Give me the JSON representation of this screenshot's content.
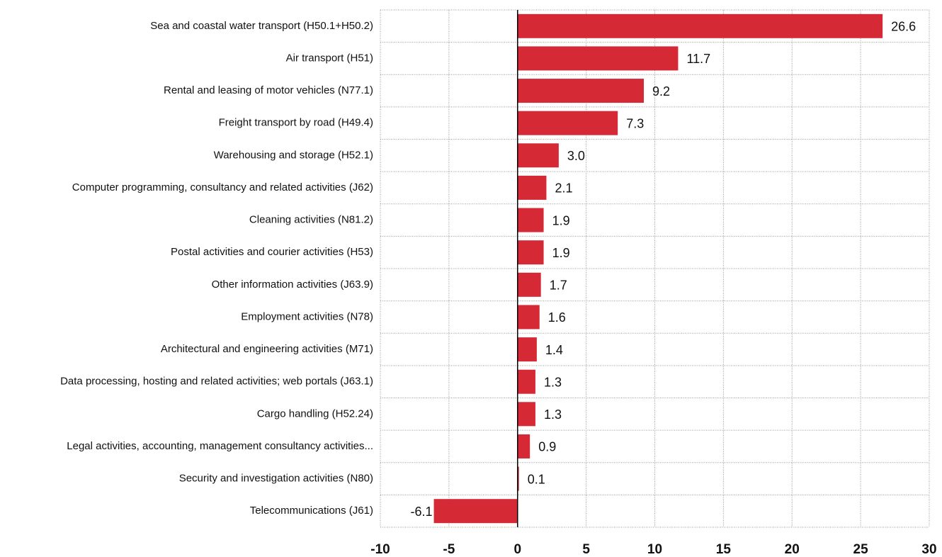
{
  "chart_data": {
    "type": "bar",
    "orientation": "horizontal",
    "categories": [
      "Sea and coastal water transport (H50.1+H50.2)",
      "Air transport (H51)",
      "Rental and leasing of motor vehicles (N77.1)",
      "Freight transport by road (H49.4)",
      "Warehousing and storage (H52.1)",
      "Computer programming, consultancy and related activities (J62)",
      "Cleaning activities (N81.2)",
      "Postal activities and courier activities (H53)",
      "Other information activities (J63.9)",
      "Employment activities (N78)",
      "Architectural and engineering activities (M71)",
      "Data processing, hosting and related activities; web portals (J63.1)",
      "Cargo handling (H52.24)",
      "Legal activities, accounting, management consultancy activities...",
      "Security and investigation activities (N80)",
      "Telecommunications (J61)"
    ],
    "values": [
      26.6,
      11.7,
      9.2,
      7.3,
      3.0,
      2.1,
      1.9,
      1.9,
      1.7,
      1.6,
      1.4,
      1.3,
      1.3,
      0.9,
      0.1,
      -6.1
    ],
    "value_labels": [
      "26.6",
      "11.7",
      "9.2",
      "7.3",
      "3.0",
      "2.1",
      "1.9",
      "1.9",
      "1.7",
      "1.6",
      "1.4",
      "1.3",
      "1.3",
      "0.9",
      "0.1",
      "-6.1"
    ],
    "color": "#d62936",
    "xlim": [
      -10,
      30
    ],
    "xticks": [
      -10,
      -5,
      0,
      5,
      10,
      15,
      20,
      25,
      30
    ],
    "grid": true
  }
}
